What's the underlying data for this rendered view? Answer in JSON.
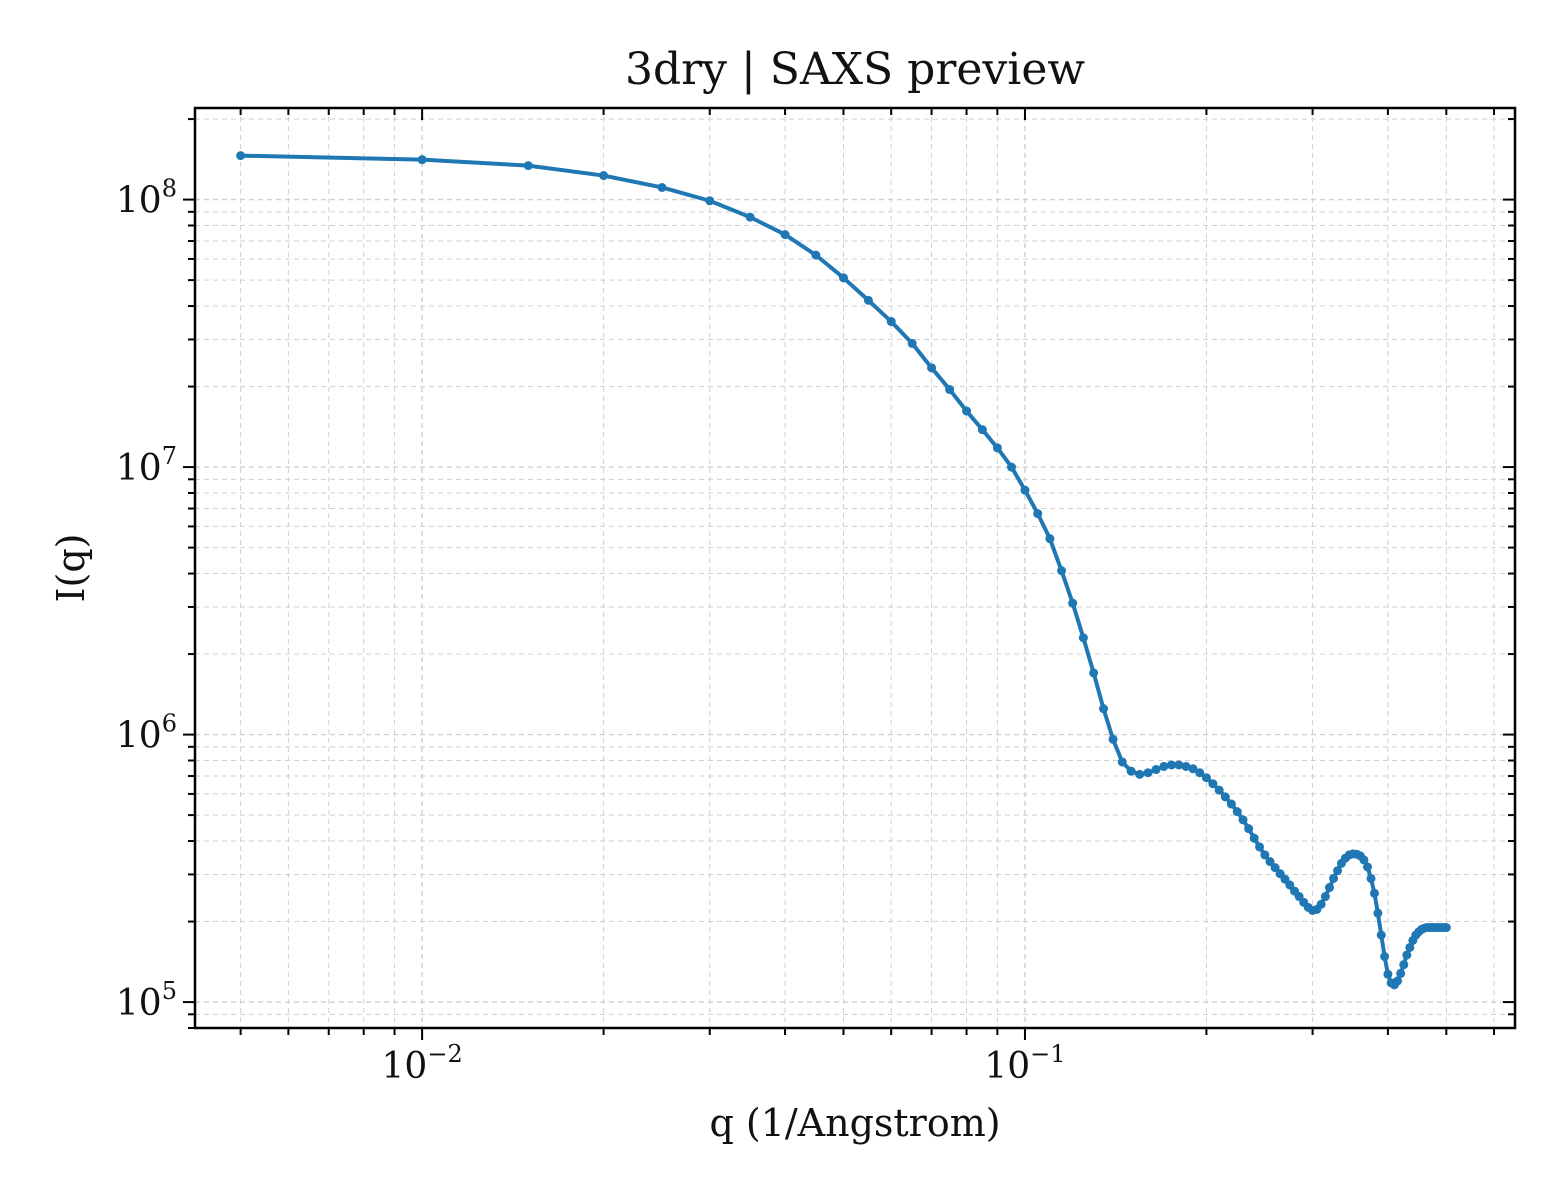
{
  "chart_data": {
    "type": "line",
    "title": "3dry | SAXS preview",
    "xlabel": "q (1/Angstrom)",
    "ylabel": "I(q)",
    "xscale": "log",
    "yscale": "log",
    "xlim": [
      0.0042,
      0.65
    ],
    "ylim": [
      80000,
      220000000
    ],
    "grid": true,
    "legend": "none",
    "x_ticks": [
      {
        "base": "10",
        "exp": "−2",
        "value": 0.01
      },
      {
        "base": "10",
        "exp": "−1",
        "value": 0.1
      }
    ],
    "y_ticks": [
      {
        "base": "10",
        "exp": "5",
        "value": 100000
      },
      {
        "base": "10",
        "exp": "6",
        "value": 1000000
      },
      {
        "base": "10",
        "exp": "7",
        "value": 10000000
      },
      {
        "base": "10",
        "exp": "8",
        "value": 100000000
      }
    ],
    "series": [
      {
        "color": "#1f77b4",
        "x": [
          0.005,
          0.01,
          0.015,
          0.02,
          0.025,
          0.03,
          0.035,
          0.04,
          0.045,
          0.05,
          0.055,
          0.06,
          0.065,
          0.07,
          0.075,
          0.08,
          0.085,
          0.09,
          0.095,
          0.1,
          0.105,
          0.11,
          0.115,
          0.12,
          0.125,
          0.13,
          0.135,
          0.14,
          0.145,
          0.15,
          0.155,
          0.16,
          0.165,
          0.17,
          0.175,
          0.18,
          0.185,
          0.19,
          0.195,
          0.2,
          0.205,
          0.21,
          0.215,
          0.22,
          0.225,
          0.23,
          0.235,
          0.24,
          0.245,
          0.25,
          0.255,
          0.26,
          0.265,
          0.27,
          0.275,
          0.28,
          0.285,
          0.29,
          0.295,
          0.3,
          0.305,
          0.31,
          0.315,
          0.32,
          0.325,
          0.33,
          0.335,
          0.34,
          0.345,
          0.35,
          0.355,
          0.36,
          0.365,
          0.37,
          0.375,
          0.38,
          0.385,
          0.39,
          0.395,
          0.4,
          0.405,
          0.41,
          0.415,
          0.42,
          0.425,
          0.43,
          0.435,
          0.44,
          0.445,
          0.45,
          0.455,
          0.46,
          0.465,
          0.47,
          0.475,
          0.48,
          0.485,
          0.49,
          0.495,
          0.5
        ],
        "y": [
          146000000,
          141000000,
          134000000,
          123000000,
          111000000,
          99000000,
          86000000,
          74000000,
          62000000,
          51000000,
          42000000,
          35000000,
          29000000,
          23500000,
          19500000,
          16200000,
          13800000,
          11800000,
          10000000,
          8200000,
          6700000,
          5400000,
          4100000,
          3100000,
          2300000,
          1700000,
          1250000,
          960000,
          790000,
          730000,
          710000,
          720000,
          740000,
          760000,
          770000,
          770000,
          760000,
          745000,
          720000,
          690000,
          655000,
          620000,
          585000,
          550000,
          515000,
          480000,
          445000,
          410000,
          380000,
          355000,
          335000,
          318000,
          302000,
          288000,
          274000,
          260000,
          248000,
          236000,
          226000,
          220000,
          222000,
          232000,
          248000,
          268000,
          290000,
          310000,
          330000,
          345000,
          355000,
          358000,
          357000,
          352000,
          340000,
          320000,
          290000,
          255000,
          215000,
          178000,
          148000,
          127000,
          118000,
          116000,
          120000,
          128000,
          138000,
          150000,
          160000,
          170000,
          178000,
          183000,
          187000,
          189000,
          190000,
          190000,
          190000,
          190000,
          190000,
          190000,
          190000,
          190000
        ]
      }
    ]
  }
}
